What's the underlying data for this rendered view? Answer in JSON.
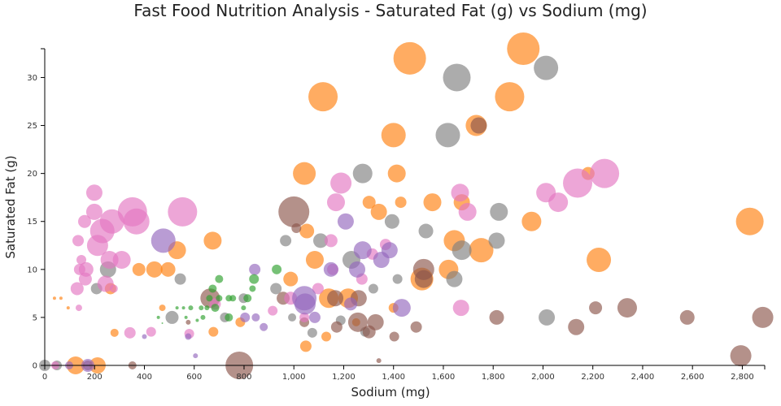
{
  "chart_data": {
    "type": "scatter",
    "title": "Fast Food Nutrition Analysis - Saturated Fat (g) vs Sodium (mg)",
    "xlabel": "Sodium (mg)",
    "ylabel": "Saturated Fat (g)",
    "xlim": [
      0,
      2890
    ],
    "ylim": [
      0,
      33
    ],
    "xticks": [
      0,
      200,
      400,
      600,
      800,
      1000,
      1200,
      1400,
      1600,
      1800,
      2000,
      2200,
      2400,
      2600,
      2800
    ],
    "xtick_labels": [
      "0",
      "200",
      "400",
      "600",
      "800",
      "1,000",
      "1,200",
      "1,400",
      "1,600",
      "1,800",
      "2,000",
      "2,200",
      "2,400",
      "2,600",
      "2,800"
    ],
    "yticks": [
      0,
      5,
      10,
      15,
      20,
      25,
      30
    ],
    "ytick_labels": [
      "0",
      "5",
      "10",
      "15",
      "20",
      "25",
      "30"
    ],
    "grid": false,
    "opacity": 0.65,
    "point_format": [
      "sodium_mg",
      "saturated_fat_g",
      "relative_bubble_size"
    ],
    "series": [
      {
        "color": "#ff7f0e",
        "points": [
          [
            1465,
            32,
            20
          ],
          [
            1921,
            33,
            20
          ],
          [
            1117,
            28,
            18
          ],
          [
            1866,
            28,
            18
          ],
          [
            1400,
            24,
            15
          ],
          [
            1732,
            25,
            13
          ],
          [
            1042,
            20,
            14
          ],
          [
            1413,
            20,
            11
          ],
          [
            2830,
            15,
            17
          ],
          [
            1954,
            15,
            12
          ],
          [
            2224,
            11,
            15
          ],
          [
            1752,
            12,
            15
          ],
          [
            1644,
            13,
            13
          ],
          [
            1556,
            17,
            11
          ],
          [
            1674,
            17,
            10
          ],
          [
            2181,
            20,
            8
          ],
          [
            674,
            13,
            11
          ],
          [
            531,
            12,
            11
          ],
          [
            440,
            10,
            10
          ],
          [
            495,
            10,
            9
          ],
          [
            264,
            8,
            7
          ],
          [
            1514,
            9,
            14
          ],
          [
            1621,
            10,
            12
          ],
          [
            1429,
            17,
            7
          ],
          [
            1341,
            16,
            10
          ],
          [
            1052,
            14,
            9
          ],
          [
            1084,
            11,
            11
          ],
          [
            987,
            9,
            9
          ],
          [
            1140,
            7,
            12
          ],
          [
            1218,
            7,
            12
          ],
          [
            212,
            0,
            10
          ],
          [
            124,
            0,
            11
          ],
          [
            378,
            10,
            8
          ],
          [
            677,
            3.5,
            6
          ],
          [
            1048,
            2,
            7
          ],
          [
            1250,
            4.5,
            5
          ],
          [
            785,
            4.5,
            6
          ],
          [
            280,
            3.4,
            5
          ],
          [
            1130,
            3,
            6
          ],
          [
            1400,
            6,
            6
          ],
          [
            39,
            7,
            2
          ],
          [
            65,
            7,
            2
          ],
          [
            94,
            6,
            2
          ],
          [
            472,
            6,
            4
          ],
          [
            1302,
            17,
            8
          ]
        ]
      },
      {
        "color": "#7f7f7f",
        "points": [
          [
            1654,
            30,
            17
          ],
          [
            2012,
            31,
            15
          ],
          [
            1618,
            24,
            15
          ],
          [
            1276,
            20,
            12
          ],
          [
            1823,
            16,
            11
          ],
          [
            1814,
            13,
            10
          ],
          [
            1674,
            12,
            12
          ],
          [
            1644,
            9,
            10
          ],
          [
            1530,
            14,
            9
          ],
          [
            2015,
            5,
            10
          ],
          [
            1394,
            15,
            9
          ],
          [
            1231,
            11,
            11
          ],
          [
            1107,
            13,
            9
          ],
          [
            254,
            10,
            10
          ],
          [
            208,
            8,
            7
          ],
          [
            544,
            9,
            7
          ],
          [
            723,
            5,
            6
          ],
          [
            798,
            7,
            6
          ],
          [
            967,
            13,
            7
          ],
          [
            993,
            5,
            5
          ],
          [
            928,
            8,
            7
          ],
          [
            1416,
            9,
            6
          ],
          [
            1319,
            8,
            6
          ],
          [
            0,
            0,
            7
          ],
          [
            1074,
            3.4,
            6
          ],
          [
            1188,
            4.7,
            6
          ],
          [
            1286,
            3.5,
            6
          ],
          [
            511,
            5,
            8
          ],
          [
            49,
            0,
            6
          ]
        ]
      },
      {
        "color": "#8c564b",
        "points": [
          [
            1000,
            16,
            19
          ],
          [
            1742,
            25,
            10
          ],
          [
            2794,
            1,
            13
          ],
          [
            2882,
            5,
            13
          ],
          [
            2338,
            6,
            12
          ],
          [
            2579,
            5,
            9
          ],
          [
            2133,
            4,
            10
          ],
          [
            2211,
            6,
            8
          ],
          [
            1814,
            5,
            9
          ],
          [
            1491,
            4,
            7
          ],
          [
            1403,
            3,
            6
          ],
          [
            1521,
            10,
            13
          ],
          [
            1521,
            9,
            11
          ],
          [
            664,
            7,
            12
          ],
          [
            781,
            0,
            17
          ],
          [
            1257,
            4.5,
            12
          ],
          [
            1328,
            4.5,
            10
          ],
          [
            1302,
            3.5,
            8
          ],
          [
            1042,
            4.5,
            6
          ],
          [
            1172,
            4,
            7
          ],
          [
            1166,
            7,
            10
          ],
          [
            957,
            7,
            8
          ],
          [
            352,
            0,
            5
          ],
          [
            173,
            0,
            6
          ],
          [
            1341,
            0.5,
            3
          ],
          [
            576,
            4.5,
            3
          ],
          [
            1010,
            14.3,
            6
          ],
          [
            1260,
            7,
            10
          ]
        ]
      },
      {
        "color": "#e377c2",
        "points": [
          [
            2247,
            20,
            18
          ],
          [
            2139,
            19,
            18
          ],
          [
            2012,
            18,
            12
          ],
          [
            2061,
            17,
            12
          ],
          [
            1667,
            18,
            11
          ],
          [
            1697,
            16,
            11
          ],
          [
            1671,
            6,
            10
          ],
          [
            1189,
            19,
            13
          ],
          [
            1169,
            17,
            11
          ],
          [
            352,
            16,
            18
          ],
          [
            553,
            16,
            18
          ],
          [
            368,
            15,
            16
          ],
          [
            270,
            15,
            15
          ],
          [
            231,
            14,
            15
          ],
          [
            199,
            18,
            10
          ],
          [
            199,
            16,
            10
          ],
          [
            160,
            15,
            8
          ],
          [
            212,
            12.5,
            13
          ],
          [
            309,
            11,
            11
          ],
          [
            260,
            11,
            11
          ],
          [
            140,
            10,
            7
          ],
          [
            166,
            10,
            9
          ],
          [
            163,
            9,
            8
          ],
          [
            244,
            8.5,
            10
          ],
          [
            130,
            8,
            8
          ],
          [
            342,
            3.4,
            7
          ],
          [
            427,
            3.5,
            6
          ],
          [
            1273,
            9,
            7
          ],
          [
            1097,
            8,
            7
          ],
          [
            1156,
            10,
            7
          ],
          [
            1315,
            11.6,
            7
          ],
          [
            1368,
            12.6,
            7
          ],
          [
            580,
            3.3,
            6
          ],
          [
            684,
            6.4,
            7
          ],
          [
            987,
            7,
            8
          ],
          [
            1042,
            5,
            6
          ],
          [
            134,
            13,
            7
          ],
          [
            147,
            11,
            6
          ],
          [
            277,
            8,
            5
          ],
          [
            137,
            6,
            4
          ],
          [
            42,
            0,
            5
          ],
          [
            915,
            5.7,
            6
          ],
          [
            1149,
            13,
            8
          ]
        ]
      },
      {
        "color": "#9467bd",
        "points": [
          [
            476,
            13,
            15
          ],
          [
            1042,
            7,
            15
          ],
          [
            1045,
            6.4,
            13
          ],
          [
            1384,
            12,
            10
          ],
          [
            1351,
            11,
            10
          ],
          [
            1433,
            6,
            11
          ],
          [
            1254,
            10,
            10
          ],
          [
            1208,
            15,
            10
          ],
          [
            1276,
            12,
            11
          ],
          [
            1149,
            10,
            9
          ],
          [
            1084,
            5,
            7
          ],
          [
            804,
            5,
            6
          ],
          [
            847,
            5,
            5
          ],
          [
            879,
            4,
            5
          ],
          [
            173,
            0,
            8
          ],
          [
            98,
            0,
            5
          ],
          [
            576,
            3,
            4
          ],
          [
            1228,
            6.4,
            8
          ],
          [
            843,
            10,
            7
          ],
          [
            605,
            1,
            3
          ],
          [
            400,
            3,
            3
          ]
        ]
      },
      {
        "color": "#2ca02c",
        "points": [
          [
            931,
            10,
            6
          ],
          [
            840,
            9,
            6
          ],
          [
            674,
            8,
            5
          ],
          [
            700,
            9,
            5
          ],
          [
            661,
            7,
            4
          ],
          [
            739,
            7,
            4
          ],
          [
            755,
            7,
            4
          ],
          [
            700,
            7,
            4
          ],
          [
            586,
            6,
            3
          ],
          [
            557,
            6,
            2
          ],
          [
            628,
            6,
            3
          ],
          [
            651,
            6,
            3
          ],
          [
            684,
            6,
            5
          ],
          [
            739,
            5,
            5
          ],
          [
            798,
            6,
            3
          ],
          [
            531,
            6,
            2
          ],
          [
            567,
            5,
            2
          ],
          [
            635,
            5,
            3
          ],
          [
            612,
            4.7,
            2
          ],
          [
            834,
            8,
            4
          ],
          [
            814,
            7,
            5
          ],
          [
            456,
            5,
            2
          ],
          [
            472,
            4.4,
            1
          ]
        ]
      }
    ]
  }
}
